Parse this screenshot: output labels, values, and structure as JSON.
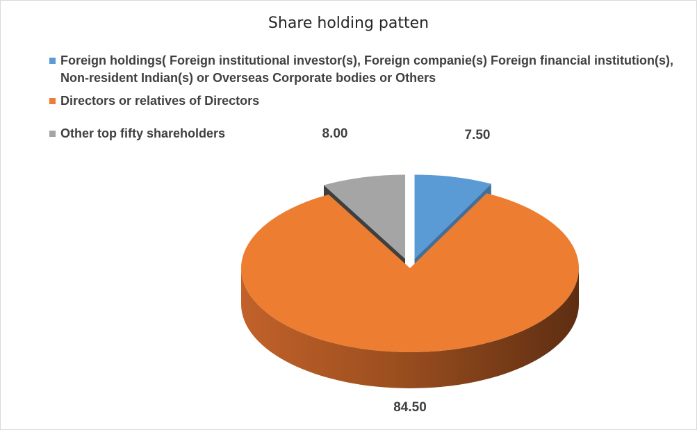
{
  "chart_data": {
    "type": "pie",
    "title": "Share holding patten",
    "legend_position": "top-left",
    "categories": [
      "Foreign holdings( Foreign institutional investor(s), Foreign companie(s) Foreign financial institution(s), Non-resident Indian(s) or Overseas Corporate bodies or Others",
      "Directors or relatives of Directors",
      "Other top fifty shareholders"
    ],
    "values": [
      7.5,
      84.5,
      8.0
    ],
    "data_labels": [
      "7.50",
      "84.50",
      "8.00"
    ],
    "colors": [
      "#5b9bd5",
      "#ed7d31",
      "#a5a5a5"
    ],
    "style": "3d-exploded"
  }
}
